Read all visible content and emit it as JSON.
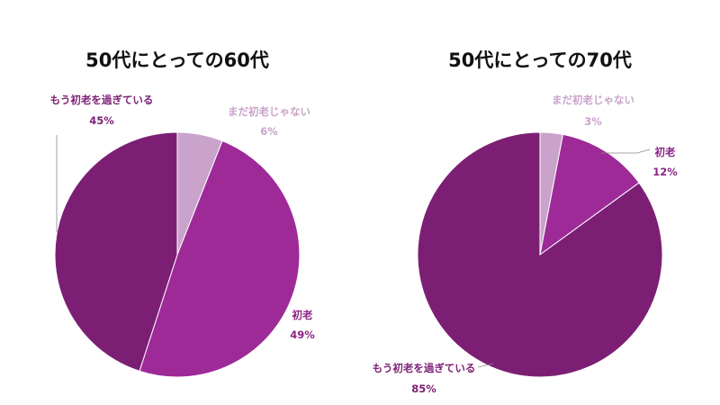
{
  "chart_data": [
    {
      "type": "pie",
      "title": "50代にとっての60代",
      "slices": [
        {
          "label": "まだ初老じゃない",
          "value": 6,
          "display": "6%",
          "color": "#c9a3cb"
        },
        {
          "label": "初老",
          "value": 49,
          "display": "49%",
          "color": "#9e2a98"
        },
        {
          "label": "もう初老を過ぎている",
          "value": 45,
          "display": "45%",
          "color": "#7c1f74"
        }
      ],
      "label_colors": {
        "まだ初老じゃない": "#c9a3cb",
        "初老": "#8c2384",
        "もう初老を過ぎている": "#7c1f74"
      }
    },
    {
      "type": "pie",
      "title": "50代にとっての70代",
      "slices": [
        {
          "label": "まだ初老じゃない",
          "value": 3,
          "display": "3%",
          "color": "#c9a3cb"
        },
        {
          "label": "初老",
          "value": 12,
          "display": "12%",
          "color": "#9e2a98"
        },
        {
          "label": "もう初老を過ぎている",
          "value": 85,
          "display": "85%",
          "color": "#7c1f74"
        }
      ],
      "label_colors": {
        "まだ初老じゃない": "#c9a3cb",
        "初老": "#8c2384",
        "もう初老を過ぎている": "#7c1f74"
      }
    }
  ]
}
